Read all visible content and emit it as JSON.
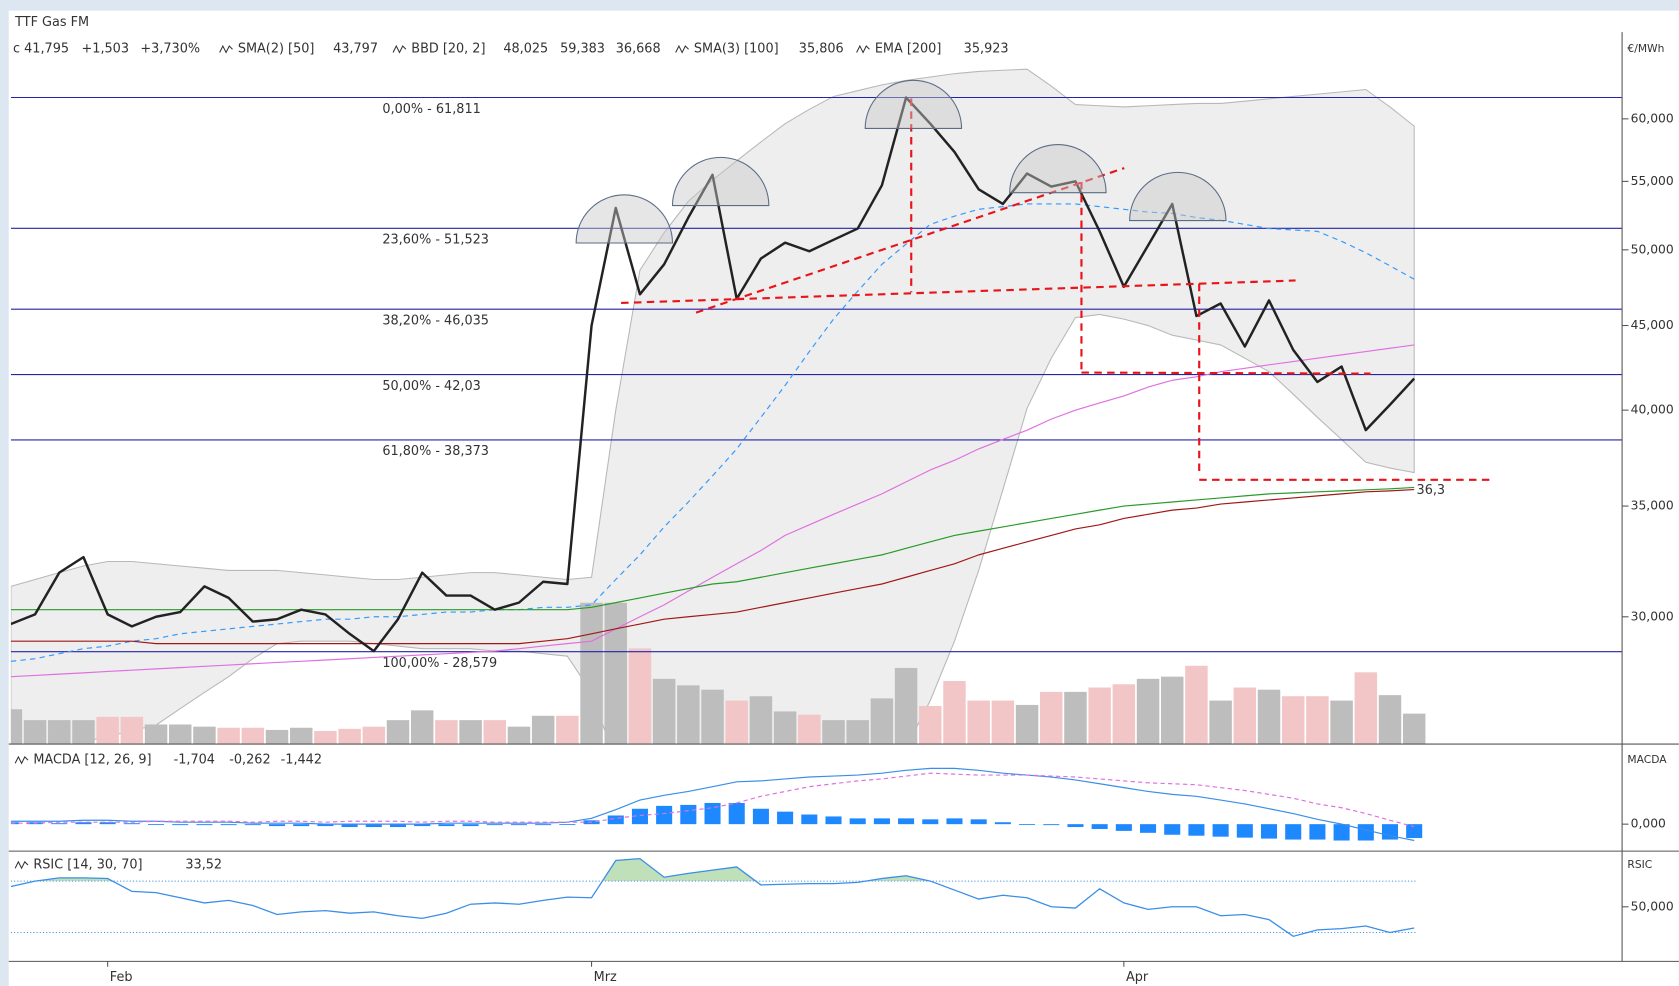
{
  "chart_data": [
    {
      "type": "line",
      "title": "TTF Gas FM",
      "unit": "€/MWh",
      "log": true,
      "ylim": [
        25.13,
        64.74
      ],
      "yticks": [
        {
          "value": 60,
          "label": "60,000"
        },
        {
          "value": 55,
          "label": "55,000"
        },
        {
          "value": 50,
          "label": "50,000"
        },
        {
          "value": 45,
          "label": "45,000"
        },
        {
          "value": 40,
          "label": "40,000"
        },
        {
          "value": 35,
          "label": "35,000"
        },
        {
          "value": 30,
          "label": "30,000"
        }
      ],
      "categories": [
        null,
        null,
        null,
        null,
        "Feb",
        null,
        null,
        null,
        null,
        null,
        null,
        null,
        null,
        null,
        null,
        null,
        null,
        null,
        null,
        null,
        null,
        null,
        null,
        null,
        "Mrz",
        null,
        null,
        null,
        null,
        null,
        null,
        null,
        null,
        null,
        null,
        null,
        null,
        null,
        null,
        null,
        null,
        null,
        null,
        null,
        null,
        null,
        "Apr",
        null,
        null,
        null,
        null,
        null,
        null,
        null,
        null,
        null,
        null,
        null,
        null
      ],
      "header": [
        {
          "text": "c 41,795",
          "color": "#333333"
        },
        {
          "text": "+1,503",
          "color": "#1e9a1e"
        },
        {
          "text": "+3,730%",
          "color": "#1e9a1e"
        },
        {
          "text": "43,797",
          "color": "#d454d4"
        },
        {
          "text": "48,025",
          "color": "#3a8ee8"
        },
        {
          "text": "59,383",
          "color": "#bbbbbb"
        },
        {
          "text": "36,668",
          "color": "#bbbbbb"
        },
        {
          "text": "35,806",
          "color": "#a01818"
        },
        {
          "text": "35,923",
          "color": "#2a9a2a"
        }
      ],
      "series": [
        {
          "color": "#222222",
          "values": [
            29.7,
            30.1,
            31.9,
            32.6,
            30.1,
            29.6,
            30.0,
            30.2,
            31.3,
            30.8,
            29.8,
            29.9,
            30.3,
            30.1,
            29.3,
            28.6,
            29.9,
            31.9,
            30.9,
            30.9,
            30.3,
            30.6,
            31.5,
            31.4,
            45.0,
            53.0,
            47.0,
            49.0,
            52.3,
            55.5,
            46.7,
            49.4,
            50.5,
            49.9,
            50.7,
            51.5,
            54.7,
            61.811,
            59.6,
            57.3,
            54.4,
            53.3,
            55.6,
            54.6,
            55.0,
            51.3,
            47.5,
            50.3,
            53.3,
            45.6,
            46.4,
            43.7,
            46.6,
            43.5,
            41.6,
            42.5,
            38.9,
            40.3,
            41.795
          ]
        },
        {
          "name": "SMA(2) [50]",
          "color": "#e070e0",
          "values": [
            27.6,
            27.65,
            27.7,
            27.75,
            27.8,
            27.85,
            27.9,
            27.95,
            28.0,
            28.05,
            28.1,
            28.15,
            28.2,
            28.25,
            28.3,
            28.35,
            28.4,
            28.45,
            28.5,
            28.55,
            28.6,
            28.7,
            28.8,
            28.9,
            29.0,
            29.5,
            30.0,
            30.5,
            31.1,
            31.7,
            32.3,
            32.9,
            33.6,
            34.1,
            34.6,
            35.1,
            35.6,
            36.2,
            36.8,
            37.3,
            37.9,
            38.4,
            38.9,
            39.5,
            40.0,
            40.4,
            40.8,
            41.3,
            41.7,
            41.9,
            42.2,
            42.4,
            42.6,
            42.8,
            43.0,
            43.2,
            43.4,
            43.6,
            43.8
          ]
        },
        {
          "name": "BBD [20, 2]",
          "color": "#3399ff",
          "dash": true,
          "band_color": "#eeeeee",
          "values": [
            28.2,
            28.3,
            28.5,
            28.7,
            28.8,
            29.0,
            29.1,
            29.3,
            29.4,
            29.5,
            29.6,
            29.7,
            29.8,
            29.9,
            29.9,
            30.0,
            30.0,
            30.1,
            30.2,
            30.2,
            30.3,
            30.3,
            30.4,
            30.4,
            30.5,
            31.6,
            32.7,
            34.0,
            35.2,
            36.5,
            37.9,
            39.6,
            41.4,
            43.4,
            45.4,
            47.2,
            49.0,
            50.4,
            51.8,
            52.4,
            52.9,
            53.1,
            53.3,
            53.3,
            53.3,
            53.1,
            52.9,
            52.7,
            52.6,
            52.3,
            52.1,
            51.8,
            51.5,
            51.4,
            51.3,
            50.6,
            49.8,
            48.9,
            48.0
          ],
          "upper": [
            31.3,
            31.6,
            31.9,
            32.2,
            32.4,
            32.4,
            32.3,
            32.2,
            32.1,
            32.0,
            32.0,
            32.0,
            31.9,
            31.8,
            31.7,
            31.6,
            31.6,
            31.7,
            31.8,
            31.9,
            31.9,
            31.8,
            31.7,
            31.6,
            31.7,
            40.0,
            48.6,
            51.2,
            53.5,
            55.1,
            56.6,
            58.1,
            59.6,
            60.8,
            61.9,
            62.4,
            62.9,
            63.3,
            63.6,
            63.9,
            64.1,
            64.2,
            64.3,
            62.8,
            61.2,
            61.1,
            61.0,
            61.1,
            61.2,
            61.3,
            61.3,
            61.5,
            61.7,
            61.9,
            62.1,
            62.3,
            62.5,
            61.0,
            59.4
          ],
          "lower": [
            24.0,
            24.5,
            24.9,
            25.2,
            25.4,
            25.6,
            25.8,
            26.4,
            27.0,
            27.6,
            28.3,
            28.9,
            29.0,
            29.0,
            29.0,
            28.9,
            28.8,
            28.7,
            28.7,
            28.7,
            28.6,
            28.6,
            28.5,
            28.4,
            27.0,
            24.5,
            22.0,
            20.5,
            20.0,
            19.8,
            19.7,
            19.8,
            20.0,
            20.4,
            21.0,
            22.0,
            23.5,
            25.0,
            26.7,
            29.0,
            32.0,
            35.8,
            40.1,
            43.0,
            45.5,
            45.7,
            45.4,
            45.0,
            44.4,
            44.1,
            43.8,
            43.0,
            42.2,
            40.9,
            39.6,
            38.4,
            37.2,
            36.9,
            36.67
          ]
        },
        {
          "name": "SMA(3) [100]",
          "color": "#a01818",
          "values": [
            29.0,
            29.0,
            29.0,
            29.0,
            29.0,
            29.0,
            28.9,
            28.9,
            28.9,
            28.9,
            28.9,
            28.9,
            28.9,
            28.9,
            28.9,
            28.9,
            28.9,
            28.9,
            28.9,
            28.9,
            28.9,
            28.9,
            29.0,
            29.1,
            29.3,
            29.5,
            29.7,
            29.9,
            30.0,
            30.1,
            30.2,
            30.4,
            30.6,
            30.8,
            31.0,
            31.2,
            31.4,
            31.7,
            32.0,
            32.3,
            32.7,
            33.0,
            33.3,
            33.6,
            33.9,
            34.1,
            34.4,
            34.6,
            34.8,
            34.9,
            35.1,
            35.2,
            35.3,
            35.4,
            35.5,
            35.6,
            35.7,
            35.75,
            35.81
          ]
        },
        {
          "name": "EMA [200]",
          "color": "#2a9a2a",
          "values": [
            30.3,
            30.3,
            30.3,
            30.3,
            30.3,
            30.3,
            30.3,
            30.3,
            30.3,
            30.3,
            30.3,
            30.3,
            30.3,
            30.3,
            30.3,
            30.3,
            30.3,
            30.3,
            30.3,
            30.3,
            30.3,
            30.3,
            30.3,
            30.3,
            30.4,
            30.6,
            30.8,
            31.0,
            31.2,
            31.4,
            31.5,
            31.7,
            31.9,
            32.1,
            32.3,
            32.5,
            32.7,
            33.0,
            33.3,
            33.6,
            33.8,
            34.0,
            34.2,
            34.4,
            34.6,
            34.8,
            35.0,
            35.1,
            35.2,
            35.3,
            35.4,
            35.5,
            35.6,
            35.65,
            35.7,
            35.75,
            35.8,
            35.85,
            35.92
          ]
        }
      ],
      "fib_levels": [
        {
          "value": 61.811,
          "label": "0,00% - 61,811"
        },
        {
          "value": 51.523,
          "label": "23,60% - 51,523"
        },
        {
          "value": 46.035,
          "label": "38,20% - 46,035"
        },
        {
          "value": 42.03,
          "label": "50,00% - 42,03"
        },
        {
          "value": 38.373,
          "label": "61,80% - 38,373"
        },
        {
          "value": 28.579,
          "label": "100,00% - 28,579"
        }
      ],
      "annotations": [
        {
          "value": 36.3,
          "label": "36,3"
        }
      ],
      "volume": {
        "up_color": "#bdbdbd",
        "down_color": "#f2c6c6",
        "values": [
          32,
          22,
          22,
          22,
          25,
          25,
          18,
          18,
          16,
          15,
          15,
          13,
          15,
          12,
          14,
          16,
          22,
          31,
          22,
          22,
          22,
          16,
          26,
          26,
          130,
          130,
          88,
          60,
          54,
          50,
          40,
          44,
          30,
          27,
          22,
          22,
          42,
          70,
          35,
          58,
          40,
          40,
          36,
          48,
          48,
          52,
          55,
          60,
          62,
          72,
          40,
          52,
          50,
          44,
          44,
          40,
          66,
          45,
          28
        ]
      }
    },
    {
      "type": "macd",
      "title": "MACDA [12, 26, 9]",
      "axis_label": "MACDA",
      "header": [
        {
          "text": "-1,704",
          "color": "#3a8ee8"
        },
        {
          "text": "-0,262",
          "color": "#d454d4"
        },
        {
          "text": "-1,442",
          "color": "#3a8ee8"
        }
      ],
      "ylim": [
        -2.8,
        8.1
      ],
      "yticks": [
        {
          "value": 0,
          "label": "0,000"
        }
      ],
      "hist_color": "#1e88ff",
      "line_color": "#3a8ee8",
      "signal_color": "#e070e0",
      "histogram": [
        0.2,
        0.2,
        0.1,
        0.2,
        0.2,
        0.1,
        0.0,
        -0.1,
        -0.1,
        -0.1,
        -0.1,
        -0.2,
        -0.2,
        -0.2,
        -0.3,
        -0.3,
        -0.3,
        -0.2,
        -0.2,
        -0.2,
        -0.1,
        -0.1,
        -0.1,
        0.0,
        0.4,
        0.9,
        1.6,
        1.9,
        2.0,
        2.2,
        2.2,
        1.6,
        1.3,
        1.0,
        0.8,
        0.6,
        0.6,
        0.6,
        0.5,
        0.6,
        0.5,
        0.2,
        0.0,
        -0.1,
        -0.3,
        -0.5,
        -0.7,
        -0.9,
        -1.1,
        -1.2,
        -1.3,
        -1.4,
        -1.5,
        -1.6,
        -1.6,
        -1.7,
        -1.7,
        -1.6,
        -1.442
      ],
      "macd": [
        0.3,
        0.3,
        0.3,
        0.4,
        0.4,
        0.3,
        0.3,
        0.2,
        0.2,
        0.2,
        0.1,
        0.1,
        0.1,
        0.0,
        0.0,
        0.0,
        0.0,
        0.0,
        0.1,
        0.1,
        0.1,
        0.1,
        0.1,
        0.2,
        0.6,
        1.5,
        2.5,
        3.0,
        3.4,
        3.9,
        4.4,
        4.5,
        4.7,
        4.9,
        5.0,
        5.1,
        5.3,
        5.6,
        5.8,
        5.8,
        5.6,
        5.3,
        5.1,
        4.9,
        4.6,
        4.2,
        3.8,
        3.4,
        3.1,
        2.9,
        2.5,
        2.1,
        1.6,
        1.1,
        0.5,
        0.0,
        -0.6,
        -1.2,
        -1.704
      ],
      "signal": [
        0.1,
        0.1,
        0.2,
        0.2,
        0.2,
        0.2,
        0.3,
        0.3,
        0.3,
        0.3,
        0.2,
        0.3,
        0.3,
        0.2,
        0.3,
        0.3,
        0.3,
        0.2,
        0.3,
        0.3,
        0.2,
        0.2,
        0.2,
        0.2,
        0.2,
        0.6,
        0.9,
        1.1,
        1.4,
        1.7,
        2.2,
        2.9,
        3.4,
        3.9,
        4.2,
        4.5,
        4.7,
        5.0,
        5.3,
        5.2,
        5.1,
        5.1,
        5.1,
        5.0,
        4.9,
        4.7,
        4.5,
        4.3,
        4.2,
        4.1,
        3.8,
        3.5,
        3.1,
        2.7,
        2.1,
        1.7,
        1.1,
        0.4,
        -0.262
      ]
    },
    {
      "type": "rsi",
      "title": "RSIC [14, 30, 70]",
      "axis_label": "RSIC",
      "header": [
        {
          "text": "33,52",
          "color": "#3a8ee8"
        }
      ],
      "ylim": [
        7.5,
        91.7
      ],
      "yticks": [
        {
          "value": 50,
          "label": "50,000"
        }
      ],
      "levels": [
        30,
        70
      ],
      "color": "#3a8ee8",
      "fill_color": "#bfe0b8",
      "values": [
        65.8,
        70.0,
        72.5,
        72.5,
        72.0,
        62.0,
        61.0,
        57.0,
        53.0,
        55.0,
        51.0,
        44.0,
        46.0,
        47.0,
        45.0,
        46.0,
        43.0,
        41.0,
        45.0,
        52.0,
        53.0,
        52.0,
        55.0,
        57.5,
        57.0,
        86.0,
        87.5,
        73.0,
        76.0,
        78.5,
        81.0,
        67.0,
        67.5,
        68.0,
        68.0,
        69.0,
        72.0,
        74.2,
        70.0,
        63.0,
        56.0,
        59.0,
        57.0,
        50.0,
        49.0,
        64.0,
        53.0,
        48.0,
        50.0,
        50.0,
        43.0,
        44.0,
        40.0,
        27.0,
        32.0,
        33.0,
        35.0,
        30.0,
        33.52
      ]
    }
  ]
}
